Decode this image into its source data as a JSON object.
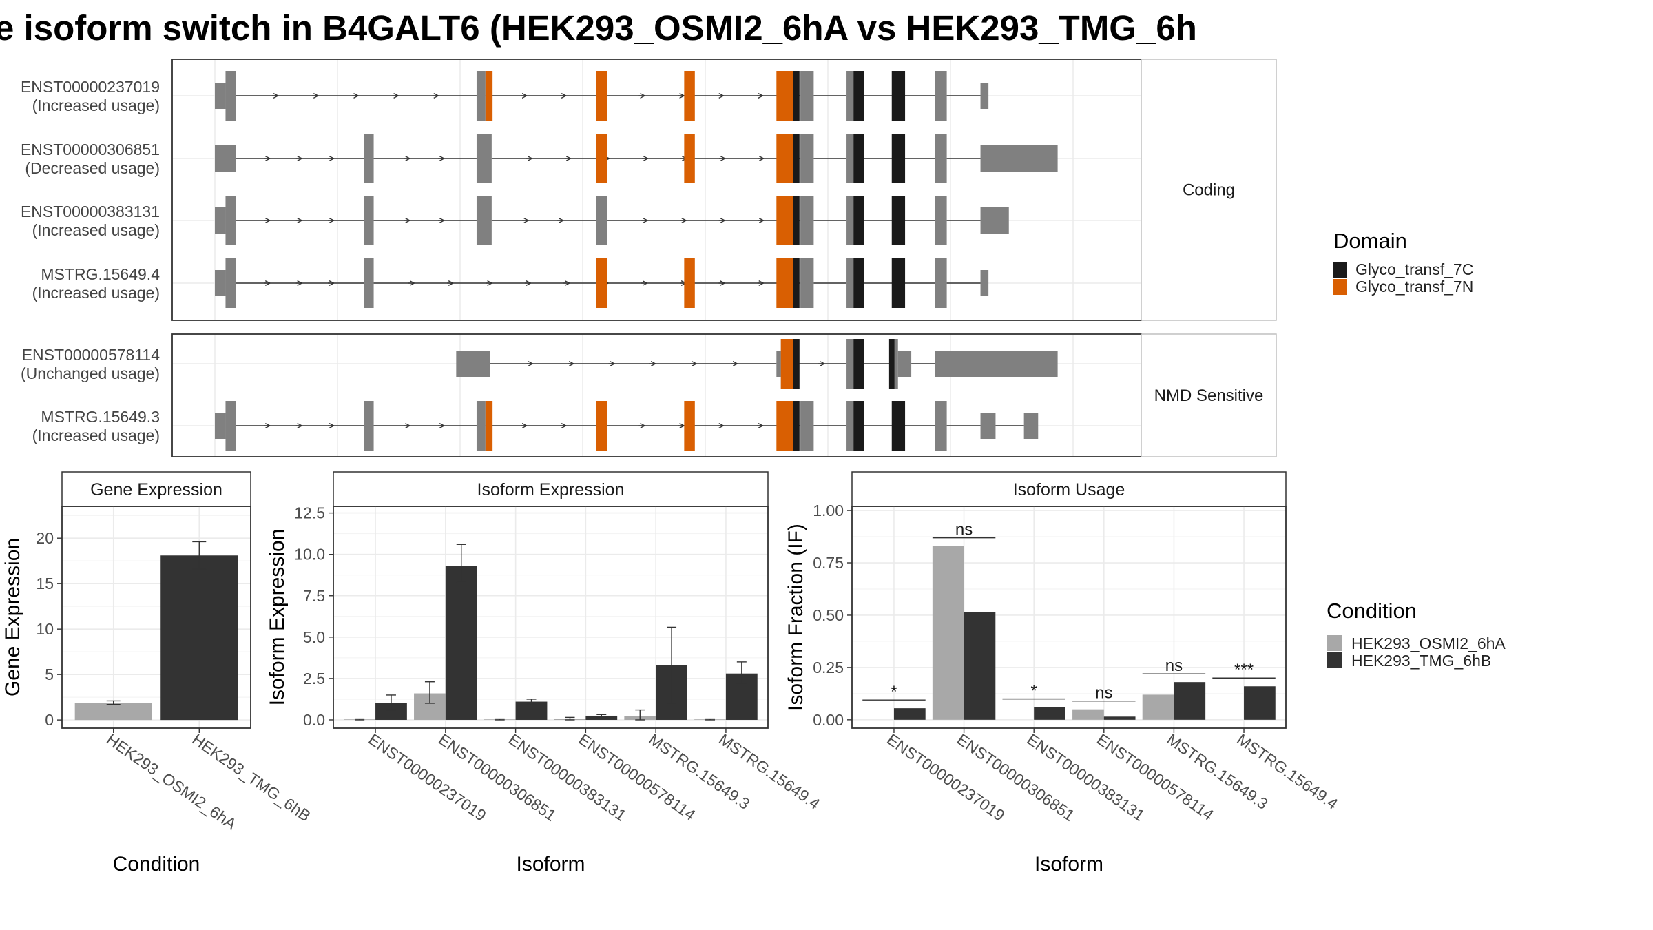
{
  "title": "e isoform switch in B4GALT6 (HEK293_OSMI2_6hA vs HEK293_TMG_6h",
  "colors": {
    "exon": "#808080",
    "Glyco_transf_7C": "#1a1a1a",
    "Glyco_transf_7N": "#d95f02",
    "cond_A": "#a8a8a8",
    "cond_B": "#333333"
  },
  "structure": {
    "x_range": [
      0,
      100
    ],
    "domain_legend": {
      "title": "Domain",
      "items": [
        {
          "label": "Glyco_transf_7C",
          "color": "#1a1a1a"
        },
        {
          "label": "Glyco_transf_7N",
          "color": "#d95f02"
        }
      ]
    },
    "panels": [
      {
        "label": "Coding",
        "transcripts": [
          {
            "id": "ENST00000237019",
            "usage": "(Increased usage)",
            "exons": [
              [
                0,
                1.2,
                0
              ],
              [
                1.2,
                2.4,
                1
              ],
              [
                29.5,
                30.5,
                1
              ],
              [
                66.0,
                67.5,
                1
              ],
              [
                71.2,
                72.7,
                1
              ],
              [
                81.2,
                82.5,
                1
              ],
              [
                86.3,
                87.2,
                0
              ]
            ],
            "orf": [
              30.5,
              86.3
            ],
            "domains": [
              [
                30.5,
                31.3,
                "N"
              ],
              [
                43.0,
                44.2,
                "N"
              ],
              [
                52.9,
                54.1,
                "N"
              ],
              [
                63.3,
                65.2,
                "N"
              ],
              [
                65.2,
                65.9,
                "C"
              ],
              [
                72.0,
                73.2,
                "C"
              ],
              [
                76.3,
                77.8,
                "C"
              ]
            ]
          },
          {
            "id": "ENST00000306851",
            "usage": "(Decreased usage)",
            "exons": [
              [
                0,
                2.4,
                0
              ],
              [
                16.8,
                17.9,
                1
              ],
              [
                29.5,
                31.2,
                1
              ],
              [
                66.0,
                67.5,
                1
              ],
              [
                71.2,
                72.7,
                1
              ],
              [
                81.2,
                82.5,
                1
              ],
              [
                86.3,
                95.0,
                0
              ]
            ],
            "orf": [
              31.2,
              86.3
            ],
            "domains": [
              [
                43.0,
                44.2,
                "N"
              ],
              [
                52.9,
                54.1,
                "N"
              ],
              [
                63.3,
                65.2,
                "N"
              ],
              [
                65.2,
                65.9,
                "C"
              ],
              [
                72.0,
                73.2,
                "C"
              ],
              [
                76.3,
                77.8,
                "C"
              ]
            ]
          },
          {
            "id": "ENST00000383131",
            "usage": "(Increased usage)",
            "exons": [
              [
                0,
                1.2,
                0
              ],
              [
                1.2,
                2.4,
                1
              ],
              [
                16.8,
                17.9,
                1
              ],
              [
                29.5,
                31.2,
                1
              ],
              [
                43.0,
                44.2,
                1
              ],
              [
                66.0,
                67.5,
                1
              ],
              [
                71.2,
                72.7,
                1
              ],
              [
                81.2,
                82.5,
                1
              ],
              [
                86.3,
                89.5,
                0
              ]
            ],
            "orf": [
              2.4,
              86.3
            ],
            "domains": [
              [
                63.3,
                65.2,
                "N"
              ],
              [
                65.2,
                65.9,
                "C"
              ],
              [
                72.0,
                73.2,
                "C"
              ],
              [
                76.3,
                77.8,
                "C"
              ]
            ]
          },
          {
            "id": "MSTRG.15649.4",
            "usage": "(Increased usage)",
            "exons": [
              [
                0,
                1.2,
                0
              ],
              [
                1.2,
                2.4,
                1
              ],
              [
                16.8,
                17.9,
                1
              ],
              [
                66.0,
                67.5,
                1
              ],
              [
                71.2,
                72.7,
                1
              ],
              [
                81.2,
                82.5,
                1
              ],
              [
                86.3,
                87.2,
                0
              ]
            ],
            "orf": [
              2.4,
              86.3
            ],
            "domains": [
              [
                43.0,
                44.2,
                "N"
              ],
              [
                52.9,
                54.1,
                "N"
              ],
              [
                63.3,
                65.2,
                "N"
              ],
              [
                65.2,
                65.9,
                "C"
              ],
              [
                72.0,
                73.2,
                "C"
              ],
              [
                76.3,
                77.8,
                "C"
              ]
            ]
          }
        ]
      },
      {
        "label": "NMD Sensitive",
        "transcripts": [
          {
            "id": "ENST00000578114",
            "usage": "(Unchanged usage)",
            "exons": [
              [
                27.2,
                31.0,
                0
              ],
              [
                63.3,
                63.8,
                0
              ],
              [
                63.8,
                65.8,
                1
              ],
              [
                71.2,
                72.7,
                1
              ],
              [
                76.3,
                77.0,
                1
              ],
              [
                77.0,
                78.5,
                0
              ],
              [
                81.2,
                95.0,
                0
              ]
            ],
            "orf": [
              63.8,
              77.0
            ],
            "domains": [
              [
                63.8,
                65.2,
                "N"
              ],
              [
                65.2,
                65.9,
                "C"
              ],
              [
                72.0,
                73.2,
                "C"
              ],
              [
                76.0,
                76.6,
                "C"
              ]
            ]
          },
          {
            "id": "MSTRG.15649.3",
            "usage": "(Increased usage)",
            "exons": [
              [
                0,
                1.2,
                0
              ],
              [
                1.2,
                2.4,
                1
              ],
              [
                16.8,
                17.9,
                1
              ],
              [
                29.5,
                30.5,
                1
              ],
              [
                66.0,
                67.5,
                1
              ],
              [
                71.2,
                72.7,
                1
              ],
              [
                81.2,
                82.5,
                1
              ],
              [
                86.3,
                88.0,
                0
              ],
              [
                91.2,
                92.8,
                0
              ]
            ],
            "orf": [
              30.5,
              86.3
            ],
            "domains": [
              [
                30.5,
                31.3,
                "N"
              ],
              [
                43.0,
                44.2,
                "N"
              ],
              [
                52.9,
                54.1,
                "N"
              ],
              [
                63.3,
                65.2,
                "N"
              ],
              [
                65.2,
                65.9,
                "C"
              ],
              [
                72.0,
                73.2,
                "C"
              ],
              [
                76.3,
                77.8,
                "C"
              ]
            ]
          }
        ]
      }
    ]
  },
  "chart_data": [
    {
      "type": "bar",
      "title": "Gene Expression",
      "xlabel": "Condition",
      "ylabel": "Gene Expression",
      "ylim": [
        -0.9,
        23.5
      ],
      "yticks": [
        0,
        5,
        10,
        15,
        20
      ],
      "categories": [
        "HEK293_OSMI2_6hA",
        "HEK293_TMG_6hB"
      ],
      "values": [
        1.9,
        18.1
      ],
      "errors": [
        [
          1.7,
          2.1
        ],
        [
          16.6,
          19.6
        ]
      ],
      "colors": [
        "#a8a8a8",
        "#333333"
      ]
    },
    {
      "type": "bar",
      "title": "Isoform Expression",
      "xlabel": "Isoform",
      "ylabel": "Isoform Expression",
      "ylim": [
        -0.5,
        12.9
      ],
      "yticks": [
        0.0,
        2.5,
        5.0,
        7.5,
        10.0,
        12.5
      ],
      "ytick_labels": [
        "0.0",
        "2.5",
        "5.0",
        "7.5",
        "10.0",
        "12.5"
      ],
      "categories": [
        "ENST00000237019",
        "ENST00000306851",
        "ENST00000383131",
        "ENST00000578114",
        "MSTRG.15649.3",
        "MSTRG.15649.4"
      ],
      "series": [
        {
          "name": "HEK293_OSMI2_6hA",
          "values": [
            0.03,
            1.6,
            0.03,
            0.08,
            0.22,
            0.03
          ],
          "errors": [
            [
              0.0,
              0.06
            ],
            [
              1.0,
              2.3
            ],
            [
              0.0,
              0.06
            ],
            [
              0.0,
              0.15
            ],
            [
              0.0,
              0.6
            ],
            [
              0.0,
              0.06
            ]
          ]
        },
        {
          "name": "HEK293_TMG_6hB",
          "values": [
            1.0,
            9.3,
            1.1,
            0.25,
            3.3,
            2.8
          ],
          "errors": [
            [
              0.6,
              1.5
            ],
            [
              8.3,
              10.6
            ],
            [
              0.95,
              1.25
            ],
            [
              0.18,
              0.32
            ],
            [
              1.0,
              5.6
            ],
            [
              2.2,
              3.5
            ]
          ]
        }
      ]
    },
    {
      "type": "bar",
      "title": "Isoform Usage",
      "xlabel": "Isoform",
      "ylabel": "Isoform Fraction (IF)",
      "ylim": [
        -0.04,
        1.02
      ],
      "yticks": [
        0.0,
        0.25,
        0.5,
        0.75,
        1.0
      ],
      "ytick_labels": [
        "0.00",
        "0.25",
        "0.50",
        "0.75",
        "1.00"
      ],
      "categories": [
        "ENST00000237019",
        "ENST00000306851",
        "ENST00000383131",
        "ENST00000578114",
        "MSTRG.15649.3",
        "MSTRG.15649.4"
      ],
      "series": [
        {
          "name": "HEK293_OSMI2_6hA",
          "values": [
            0.0,
            0.83,
            0.0,
            0.05,
            0.12,
            0.0
          ]
        },
        {
          "name": "HEK293_TMG_6hB",
          "values": [
            0.055,
            0.515,
            0.06,
            0.015,
            0.18,
            0.16
          ]
        }
      ],
      "significance": [
        "*",
        "ns",
        "*",
        "ns",
        "ns",
        "***"
      ]
    }
  ],
  "condition_legend": {
    "title": "Condition",
    "items": [
      {
        "label": "HEK293_OSMI2_6hA",
        "color": "#a8a8a8"
      },
      {
        "label": "HEK293_TMG_6hB",
        "color": "#333333"
      }
    ]
  }
}
